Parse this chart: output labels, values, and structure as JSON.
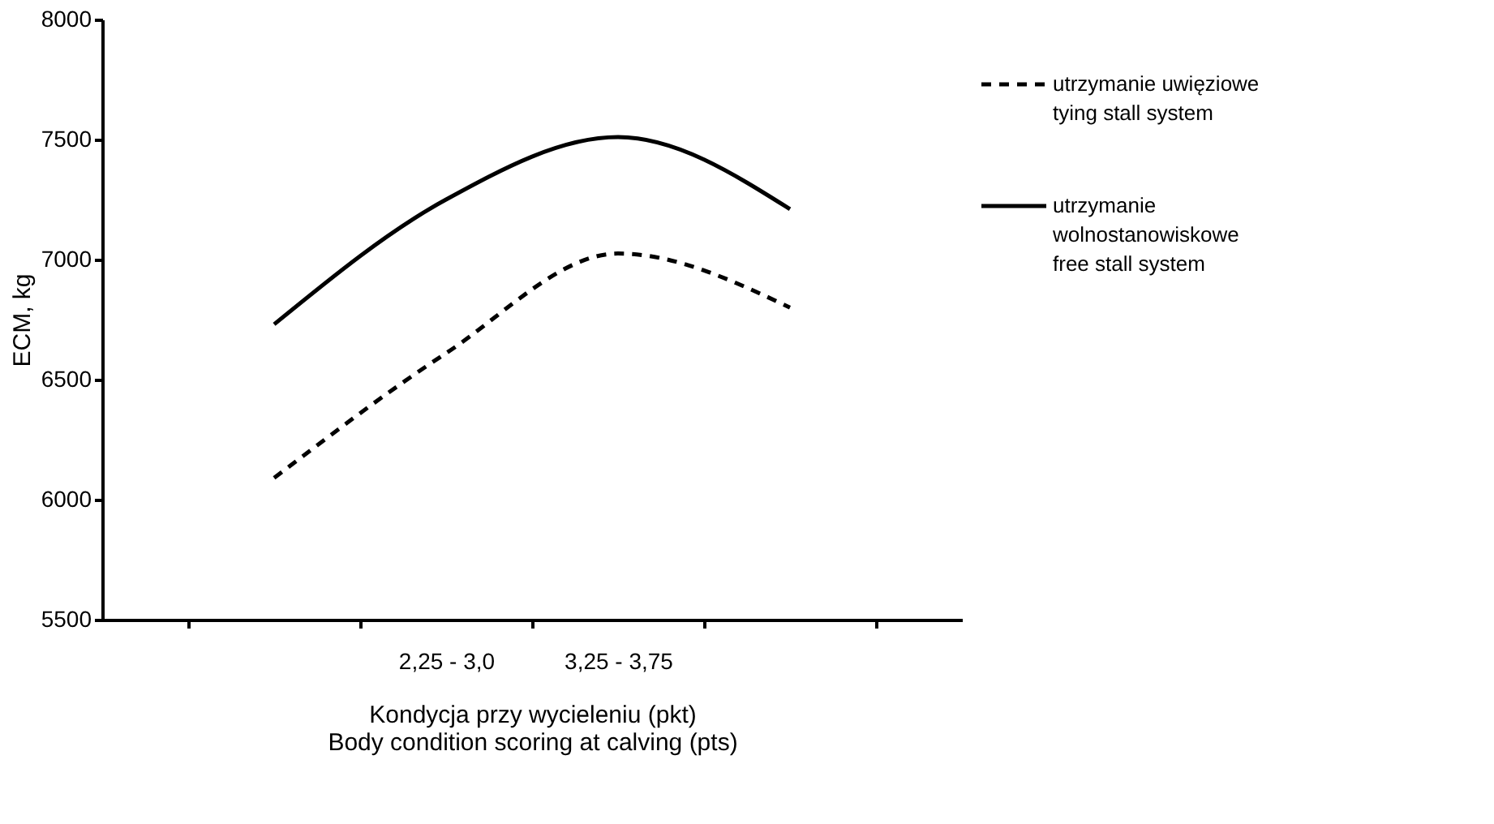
{
  "chart_data": {
    "type": "line",
    "xlabel": "Kondycja przy wycieleniu (pkt)\nBody condition scoring at calving (pts)",
    "ylabel": "ECM, kg",
    "categories": [
      null,
      "2,25 - 3,0",
      "3,25 - 3,75",
      null
    ],
    "series": [
      {
        "name": "utrzymanie uwięziowe\ntying stall system",
        "color": "#000000",
        "line_style": "dashed",
        "values": [
          6090,
          6610,
          7025,
          6800
        ]
      },
      {
        "name": "utrzymanie\nwolnostanowiskowe\nfree stall system",
        "color": "#000000",
        "line_style": "solid",
        "values": [
          6730,
          7250,
          7510,
          7210
        ]
      }
    ],
    "ylim": [
      5500,
      8000
    ],
    "yticks": [
      5500,
      6000,
      6500,
      7000,
      7500,
      8000
    ],
    "grid": false,
    "legend": "right",
    "marker": "none"
  }
}
